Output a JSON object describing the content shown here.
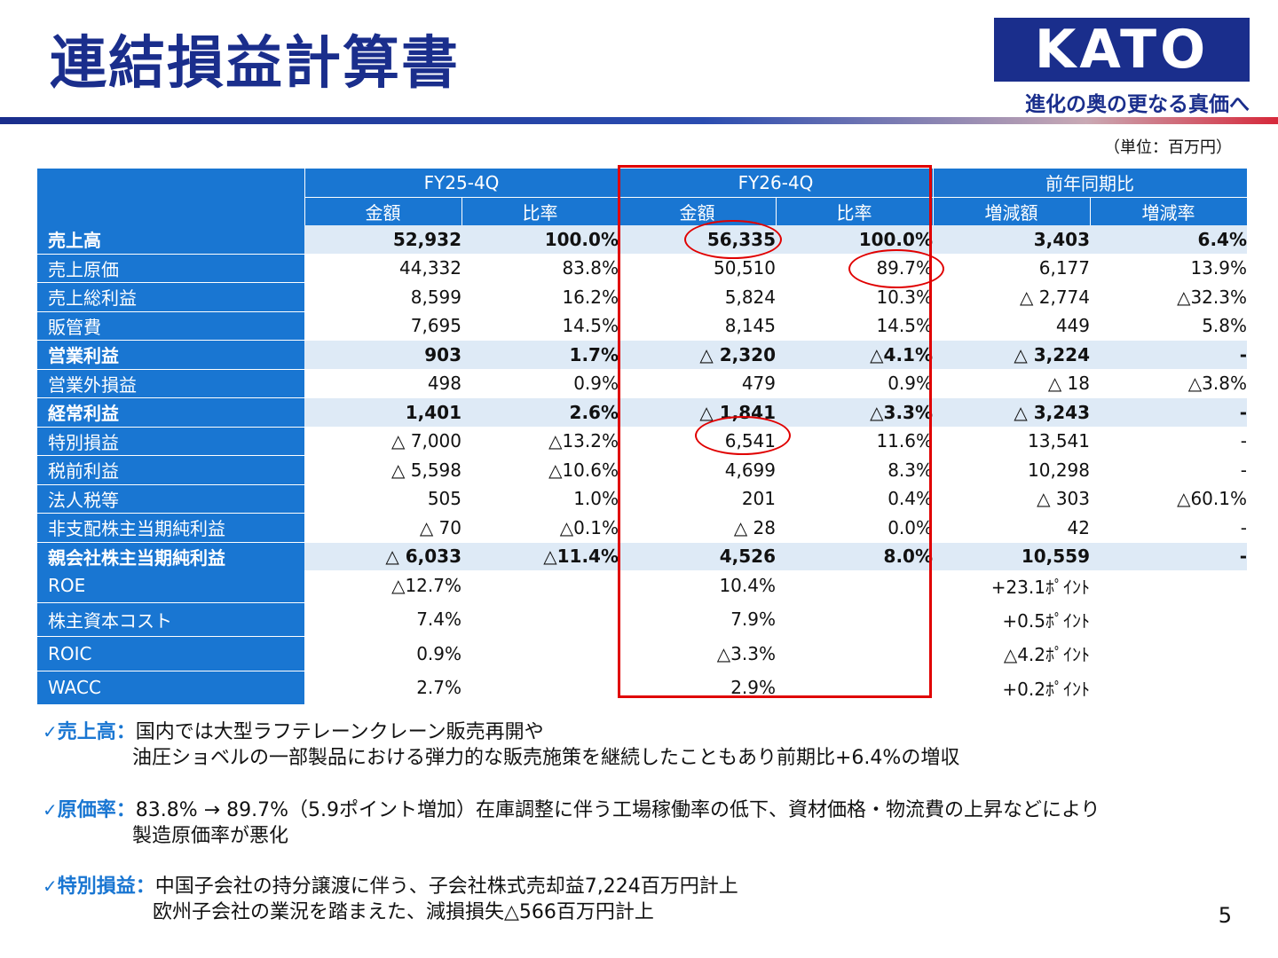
{
  "title": "連結損益計算書",
  "logo": {
    "text": "KATO",
    "tagline": "進化の奥の更なる真価へ",
    "bg": "#1a2e8c"
  },
  "unit": "（単位：百万円）",
  "table": {
    "groups": [
      "FY25-4Q",
      "FY26-4Q",
      "前年同期比"
    ],
    "subheaders": [
      "金額",
      "比率",
      "金額",
      "比率",
      "増減額",
      "増減率"
    ],
    "rows": [
      {
        "label": "売上高",
        "bold": true,
        "cells": [
          "52,932",
          "100.0%",
          "56,335",
          "100.0%",
          "3,403",
          "6.4%"
        ]
      },
      {
        "label": "売上原価",
        "bold": false,
        "cells": [
          "44,332",
          "83.8%",
          "50,510",
          "89.7%",
          "6,177",
          "13.9%"
        ]
      },
      {
        "label": "売上総利益",
        "bold": false,
        "cells": [
          "8,599",
          "16.2%",
          "5,824",
          "10.3%",
          "△ 2,774",
          "△32.3%"
        ]
      },
      {
        "label": "販管費",
        "bold": false,
        "cells": [
          "7,695",
          "14.5%",
          "8,145",
          "14.5%",
          "449",
          "5.8%"
        ]
      },
      {
        "label": "営業利益",
        "bold": true,
        "cells": [
          "903",
          "1.7%",
          "△ 2,320",
          "△4.1%",
          "△ 3,224",
          "-"
        ]
      },
      {
        "label": "営業外損益",
        "bold": false,
        "cells": [
          "498",
          "0.9%",
          "479",
          "0.9%",
          "△ 18",
          "△3.8%"
        ]
      },
      {
        "label": "経常利益",
        "bold": true,
        "cells": [
          "1,401",
          "2.6%",
          "△ 1,841",
          "△3.3%",
          "△ 3,243",
          "-"
        ]
      },
      {
        "label": "特別損益",
        "bold": false,
        "cells": [
          "△ 7,000",
          "△13.2%",
          "6,541",
          "11.6%",
          "13,541",
          "-"
        ]
      },
      {
        "label": "税前利益",
        "bold": false,
        "cells": [
          "△ 5,598",
          "△10.6%",
          "4,699",
          "8.3%",
          "10,298",
          "-"
        ]
      },
      {
        "label": "法人税等",
        "bold": false,
        "cells": [
          "505",
          "1.0%",
          "201",
          "0.4%",
          "△ 303",
          "△60.1%"
        ]
      },
      {
        "label": "非支配株主当期純利益",
        "bold": false,
        "cells": [
          "△ 70",
          "△0.1%",
          "△ 28",
          "0.0%",
          "42",
          "-"
        ]
      },
      {
        "label": "親会社株主当期純利益",
        "bold": true,
        "cells": [
          "△ 6,033",
          "△11.4%",
          "4,526",
          "8.0%",
          "10,559",
          "-"
        ]
      }
    ]
  },
  "ratios": [
    {
      "label": "ROE",
      "fy25": "△12.7%",
      "fy26": "10.4%",
      "diff": "+23.1ﾎﾟｲﾝﾄ"
    },
    {
      "label": "株主資本コスト",
      "fy25": "7.4%",
      "fy26": "7.9%",
      "diff": "+0.5ﾎﾟｲﾝﾄ"
    },
    {
      "label": "ROIC",
      "fy25": "0.9%",
      "fy26": "△3.3%",
      "diff": "△4.2ﾎﾟｲﾝﾄ"
    },
    {
      "label": "WACC",
      "fy25": "2.7%",
      "fy26": "2.9%",
      "diff": "+0.2ﾎﾟｲﾝﾄ"
    }
  ],
  "notes": [
    {
      "label": "売上高：",
      "line1": "国内では大型ラフテレーンクレーン販売再開や",
      "line2": "油圧ショベルの一部製品における弾力的な販売施策を継続したこともあり前期比+6.4%の増収"
    },
    {
      "label": "原価率：",
      "line1": "83.8% → 89.7%（5.9ポイント増加）在庫調整に伴う工場稼働率の低下、資材価格・物流費の上昇などにより",
      "line2": "製造原価率が悪化"
    },
    {
      "label": "特別損益：",
      "line1": "中国子会社の持分譲渡に伴う、子会社株式売却益7,224百万円計上",
      "line2": "欧州子会社の業況を踏まえた、減損損失△566百万円計上"
    }
  ],
  "check_mark": "✓",
  "page_number": "5",
  "colors": {
    "header_blue": "#1976d2",
    "highlight_row": "#deeaf6",
    "title_navy": "#1a2e8c",
    "annotation_red": "#e00000"
  }
}
